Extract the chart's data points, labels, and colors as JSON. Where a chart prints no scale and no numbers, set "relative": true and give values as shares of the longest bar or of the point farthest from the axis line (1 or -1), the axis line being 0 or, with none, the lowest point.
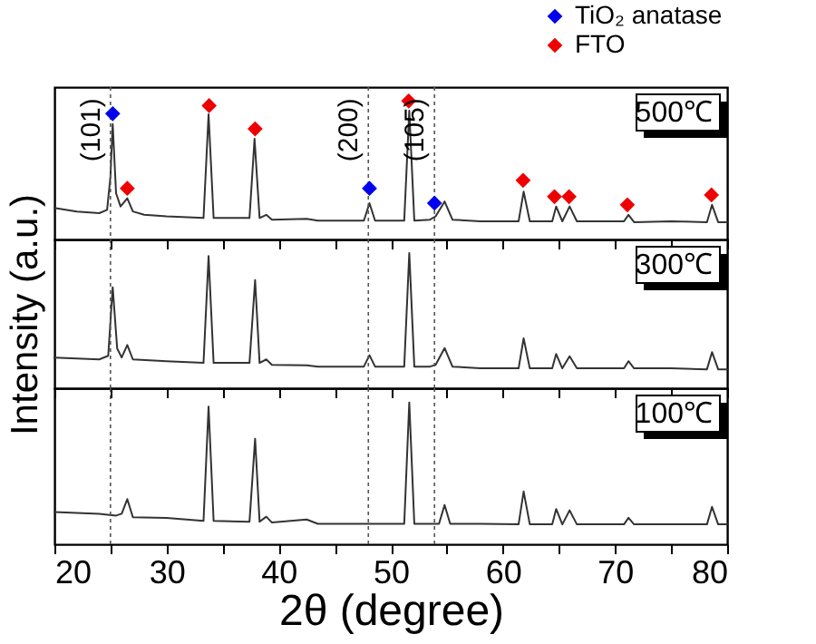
{
  "chart_data": [
    {
      "type": "line",
      "relative": true,
      "xlim": [
        20,
        80
      ],
      "xticks": [
        20,
        {
          "value": 25,
          "label": null
        },
        30,
        {
          "value": 35,
          "label": null
        },
        40,
        {
          "value": 45,
          "label": null
        },
        50,
        {
          "value": 55,
          "label": null
        },
        60,
        {
          "value": 65,
          "label": null
        },
        70,
        {
          "value": 75,
          "label": null
        },
        80
      ],
      "tick_labels": false,
      "legend": "top right",
      "annotations": [
        "500℃",
        {
          "text": "(101)",
          "x": 25.0,
          "y": 1.02
        },
        {
          "text": "(200)",
          "x": 48.0,
          "y": 1.02
        },
        {
          "text": "(105)",
          "x": 53.9,
          "y": 1.02
        }
      ],
      "ref_lines": [
        {
          "axis": "x",
          "value": 25.0,
          "line_style": "dotted",
          "color": "#555555"
        },
        {
          "axis": "x",
          "value": 48.0,
          "line_style": "dotted",
          "color": "#555555"
        },
        {
          "axis": "x",
          "value": 53.9,
          "line_style": "dotted",
          "color": "#555555"
        }
      ],
      "series": [
        {
          "color": "#333333",
          "x": [
            20,
            22,
            24,
            24.7,
            25.0,
            25.2,
            25.5,
            25.9,
            26.5,
            27.0,
            28,
            30,
            33.3,
            33.75,
            34.2,
            37.4,
            37.85,
            38.3,
            38.9,
            39.4,
            42.5,
            43.5,
            47.6,
            48.1,
            48.6,
            51.2,
            51.65,
            52.1,
            53.5,
            54.0,
            54.8,
            55.5,
            58,
            61.4,
            61.85,
            62.4,
            64.4,
            64.75,
            65.3,
            65.95,
            66.6,
            70.8,
            71.2,
            71.7,
            75,
            78.2,
            78.65,
            79.2,
            80
          ],
          "values": [
            0.227,
            0.202,
            0.19,
            0.214,
            0.455,
            0.833,
            0.334,
            0.238,
            0.297,
            0.202,
            0.178,
            0.167,
            0.155,
            0.904,
            0.155,
            0.155,
            0.726,
            0.155,
            0.178,
            0.143,
            0.149,
            0.136,
            0.136,
            0.262,
            0.136,
            0.136,
            0.929,
            0.136,
            0.143,
            0.167,
            0.274,
            0.143,
            0.131,
            0.131,
            0.345,
            0.131,
            0.131,
            0.238,
            0.131,
            0.238,
            0.131,
            0.131,
            0.178,
            0.125,
            0.131,
            0.125,
            0.25,
            0.125,
            0.125
          ]
        },
        {
          "type": "scatter",
          "marker": "diamond",
          "name": "TiO₂ anatase",
          "color": "#0000ee",
          "x": [
            25.2,
            48.1,
            53.9
          ],
          "values": [
            0.908,
            0.369,
            0.262
          ]
        },
        {
          "type": "scatter",
          "marker": "diamond",
          "name": "FTO",
          "color": "#ee0000",
          "x": [
            26.5,
            33.8,
            37.9,
            51.6,
            61.8,
            64.6,
            65.9,
            71.1,
            78.6
          ],
          "values": [
            0.369,
            0.966,
            0.798,
            1.0,
            0.427,
            0.309,
            0.309,
            0.25,
            0.321
          ]
        }
      ]
    },
    {
      "type": "line",
      "relative": true,
      "xlim": [
        20,
        80
      ],
      "xticks": [
        20,
        {
          "value": 25,
          "label": null
        },
        30,
        {
          "value": 35,
          "label": null
        },
        40,
        {
          "value": 45,
          "label": null
        },
        50,
        {
          "value": 55,
          "label": null
        },
        60,
        {
          "value": 65,
          "label": null
        },
        70,
        {
          "value": 75,
          "label": null
        },
        80
      ],
      "tick_labels": false,
      "ylabel": "Intensity (a.u.)",
      "annotations": [
        "300℃"
      ],
      "ref_lines": [
        {
          "axis": "x",
          "value": 25.0,
          "line_style": "dotted",
          "color": "#555555"
        },
        {
          "axis": "x",
          "value": 48.0,
          "line_style": "dotted",
          "color": "#555555"
        },
        {
          "axis": "x",
          "value": 53.9,
          "line_style": "dotted",
          "color": "#555555"
        }
      ],
      "series": [
        {
          "color": "#333333",
          "x": [
            20,
            24,
            24.8,
            25.2,
            25.6,
            26.0,
            26.5,
            27,
            30,
            33.3,
            33.75,
            34.2,
            37.4,
            37.9,
            38.3,
            38.9,
            39.4,
            42.5,
            43.5,
            47.6,
            48.1,
            48.6,
            51.2,
            51.65,
            52.1,
            53.5,
            54.0,
            54.8,
            55.5,
            58,
            61.4,
            61.85,
            62.4,
            64.4,
            64.75,
            65.3,
            65.95,
            66.6,
            70.8,
            71.2,
            71.7,
            75,
            78.2,
            78.65,
            79.2,
            80
          ],
          "values": [
            0.227,
            0.213,
            0.24,
            0.747,
            0.293,
            0.227,
            0.32,
            0.213,
            0.2,
            0.187,
            0.977,
            0.187,
            0.187,
            0.8,
            0.187,
            0.213,
            0.173,
            0.169,
            0.16,
            0.16,
            0.244,
            0.16,
            0.16,
            1.0,
            0.16,
            0.16,
            0.173,
            0.297,
            0.16,
            0.147,
            0.147,
            0.369,
            0.147,
            0.147,
            0.253,
            0.147,
            0.236,
            0.147,
            0.147,
            0.2,
            0.147,
            0.147,
            0.14,
            0.267,
            0.14,
            0.14
          ]
        }
      ]
    },
    {
      "type": "line",
      "relative": true,
      "xlim": [
        20,
        80
      ],
      "xticks": [
        20,
        {
          "value": 25,
          "label": null
        },
        30,
        {
          "value": 35,
          "label": null
        },
        40,
        {
          "value": 45,
          "label": null
        },
        50,
        {
          "value": 55,
          "label": null
        },
        60,
        {
          "value": 65,
          "label": null
        },
        70,
        {
          "value": 75,
          "label": null
        },
        80
      ],
      "tick_labels": "x",
      "xlabel": "2θ (degree)",
      "annotations": [
        "100℃"
      ],
      "ref_lines": [
        {
          "axis": "x",
          "value": 25.0,
          "line_style": "dotted",
          "color": "#555555"
        },
        {
          "axis": "x",
          "value": 48.0,
          "line_style": "dotted",
          "color": "#555555"
        },
        {
          "axis": "x",
          "value": 53.9,
          "line_style": "dotted",
          "color": "#555555"
        }
      ],
      "series": [
        {
          "color": "#333333",
          "x": [
            20,
            24,
            25.5,
            26.0,
            26.5,
            27,
            30,
            33.3,
            33.75,
            34.2,
            37.4,
            37.9,
            38.3,
            38.9,
            39.4,
            42.5,
            43.5,
            51.2,
            51.65,
            52.1,
            54.3,
            54.8,
            55.3,
            58,
            61.4,
            61.85,
            62.4,
            64.4,
            64.75,
            65.3,
            65.95,
            66.6,
            70.8,
            71.2,
            71.7,
            78.2,
            78.65,
            79.2,
            80
          ],
          "values": [
            0.227,
            0.215,
            0.202,
            0.215,
            0.318,
            0.19,
            0.186,
            0.165,
            0.971,
            0.165,
            0.159,
            0.744,
            0.159,
            0.194,
            0.153,
            0.174,
            0.144,
            0.144,
            1.0,
            0.144,
            0.144,
            0.277,
            0.144,
            0.144,
            0.14,
            0.372,
            0.14,
            0.14,
            0.248,
            0.14,
            0.239,
            0.14,
            0.14,
            0.186,
            0.14,
            0.14,
            0.264,
            0.14,
            0.14
          ]
        }
      ]
    }
  ]
}
